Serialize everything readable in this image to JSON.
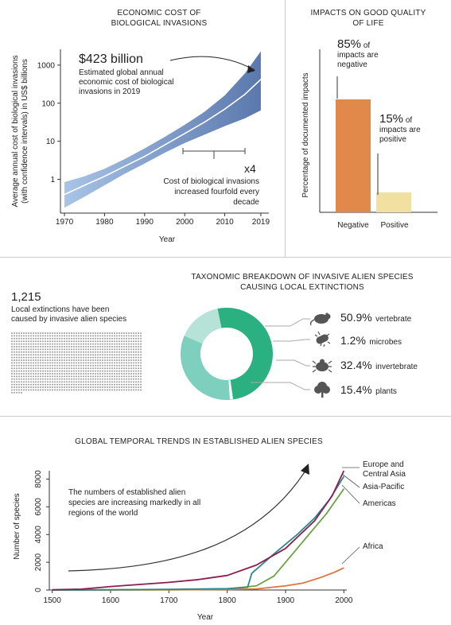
{
  "colors": {
    "band": "#5a78ad",
    "band_light": "#a8c4e6",
    "negative_bar": "#e0894a",
    "positive_bar": "#f2e0a0",
    "donut_dark": "#2bb081",
    "donut_mid": "#7fcfbf",
    "donut_light": "#b6e2d8",
    "europe": "#8e1d4f",
    "asia": "#2a8a8f",
    "americas": "#6aa343",
    "africa": "#e0743a"
  },
  "panel1": {
    "title_line1": "ECONOMIC COST OF",
    "title_line2": "BIOLOGICAL INVASIONS",
    "headline": "$423 billion",
    "headline_sub": [
      "Estimated global annual",
      "economic cost of biological",
      "invasions in 2019"
    ],
    "x4": "x4",
    "note": [
      "Cost of biological invasions",
      "increased fourfold every",
      "decade"
    ],
    "ylabel_line1": "Average annual cost of biological invasions",
    "ylabel_line2": "(with confidence intervals) in US$ billions",
    "xlabel": "Year"
  },
  "panel2": {
    "title_line1": "IMPACTS ON GOOD QUALITY",
    "title_line2": "OF LIFE",
    "ylabel": "Percentage of documented impacts",
    "neg_pct": "85%",
    "neg_text": [
      "of",
      "impacts are",
      "negative"
    ],
    "pos_pct": "15%",
    "pos_text": [
      "of",
      "impacts are",
      "positive"
    ],
    "neg_label": "Negative",
    "pos_label": "Positive"
  },
  "panel3": {
    "count": "1,215",
    "count_text": [
      "Local extinctions have been",
      "caused by invasive alien species"
    ],
    "title_line1": "TAXONOMIC BREAKDOWN OF INVASIVE ALIEN SPECIES",
    "title_line2": "CAUSING LOCAL EXTINCTIONS",
    "legend": [
      {
        "pct": "50.9%",
        "label": "vertebrate",
        "icon": "rodent-icon"
      },
      {
        "pct": "1.2%",
        "label": "microbes",
        "icon": "microbe-icon"
      },
      {
        "pct": "32.4%",
        "label": "invertebrate",
        "icon": "beetle-icon"
      },
      {
        "pct": "15.4%",
        "label": "plants",
        "icon": "tree-icon"
      }
    ]
  },
  "panel4": {
    "title": "GLOBAL TEMPORAL TRENDS IN ESTABLISHED ALIEN SPECIES",
    "annotation": [
      "The numbers of established alien",
      "species are increasing markedly in all",
      "regions of the world"
    ],
    "ylabel": "Number of species",
    "xlabel": "Year",
    "labels": {
      "europe": [
        "Europe and",
        "Central Asia"
      ],
      "asia": "Asia-Pacific",
      "americas": "Americas",
      "africa": "Africa"
    }
  },
  "chart_data": [
    {
      "type": "area",
      "title": "ECONOMIC COST OF BIOLOGICAL INVASIONS",
      "xlabel": "Year",
      "ylabel": "Average annual cost of biological invasions (with confidence intervals) in US$ billions",
      "yscale": "log",
      "x_ticks": [
        "1970",
        "1980",
        "1990",
        "2000",
        "2010",
        "2019"
      ],
      "y_ticks": [
        "1",
        "10",
        "100",
        "1000"
      ],
      "xlim": [
        1969,
        2021
      ],
      "ylim": [
        0.13,
        2600
      ],
      "x": [
        1970,
        1975,
        1980,
        1985,
        1990,
        1995,
        2000,
        2005,
        2010,
        2015,
        2019
      ],
      "mean": [
        0.4,
        0.7,
        1.2,
        2.2,
        4,
        8,
        16,
        32,
        70,
        170,
        423
      ],
      "lower": [
        0.18,
        0.35,
        0.7,
        1.4,
        2.6,
        5,
        9,
        15,
        25,
        40,
        65
      ],
      "upper": [
        0.85,
        1.2,
        1.9,
        3.4,
        6.5,
        13,
        27,
        60,
        160,
        600,
        2300
      ]
    },
    {
      "type": "bar",
      "title": "IMPACTS ON GOOD QUALITY OF LIFE",
      "ylabel": "Percentage of documented impacts",
      "categories": [
        "Negative",
        "Positive"
      ],
      "values": [
        85,
        15
      ]
    },
    {
      "type": "pie",
      "title": "TAXONOMIC BREAKDOWN OF INVASIVE ALIEN SPECIES CAUSING LOCAL EXTINCTIONS",
      "categories": [
        "vertebrate",
        "microbes",
        "invertebrate",
        "plants"
      ],
      "values": [
        50.9,
        1.2,
        32.4,
        15.4
      ],
      "total_extinctions": 1215
    },
    {
      "type": "line",
      "title": "GLOBAL TEMPORAL TRENDS IN ESTABLISHED ALIEN SPECIES",
      "xlabel": "Year",
      "ylabel": "Number of species",
      "x_ticks": [
        "1500",
        "1600",
        "1700",
        "1800",
        "1900",
        "2000"
      ],
      "y_ticks": [
        "0",
        "2000",
        "4000",
        "6000",
        "8000"
      ],
      "xlim": [
        1495,
        2005
      ],
      "ylim": [
        0,
        8600
      ],
      "series": [
        {
          "name": "Europe and Central Asia",
          "points": [
            [
              1500,
              20
            ],
            [
              1550,
              60
            ],
            [
              1600,
              250
            ],
            [
              1650,
              400
            ],
            [
              1700,
              550
            ],
            [
              1750,
              750
            ],
            [
              1800,
              1050
            ],
            [
              1850,
              1800
            ],
            [
              1900,
              3000
            ],
            [
              1950,
              5000
            ],
            [
              1980,
              6800
            ],
            [
              2000,
              8600
            ]
          ]
        },
        {
          "name": "Asia-Pacific",
          "points": [
            [
              1500,
              0
            ],
            [
              1600,
              20
            ],
            [
              1700,
              50
            ],
            [
              1800,
              100
            ],
            [
              1835,
              200
            ],
            [
              1842,
              1200
            ],
            [
              1880,
              2600
            ],
            [
              1920,
              4000
            ],
            [
              1950,
              5200
            ],
            [
              1975,
              6500
            ],
            [
              2000,
              8200
            ]
          ]
        },
        {
          "name": "Americas",
          "points": [
            [
              1500,
              0
            ],
            [
              1600,
              10
            ],
            [
              1700,
              30
            ],
            [
              1800,
              80
            ],
            [
              1850,
              300
            ],
            [
              1880,
              1000
            ],
            [
              1910,
              2500
            ],
            [
              1940,
              4000
            ],
            [
              1970,
              5500
            ],
            [
              2000,
              7300
            ]
          ]
        },
        {
          "name": "Africa",
          "points": [
            [
              1500,
              0
            ],
            [
              1700,
              10
            ],
            [
              1800,
              40
            ],
            [
              1850,
              80
            ],
            [
              1900,
              300
            ],
            [
              1930,
              500
            ],
            [
              1960,
              900
            ],
            [
              1985,
              1300
            ],
            [
              2000,
              1600
            ]
          ]
        }
      ]
    }
  ]
}
